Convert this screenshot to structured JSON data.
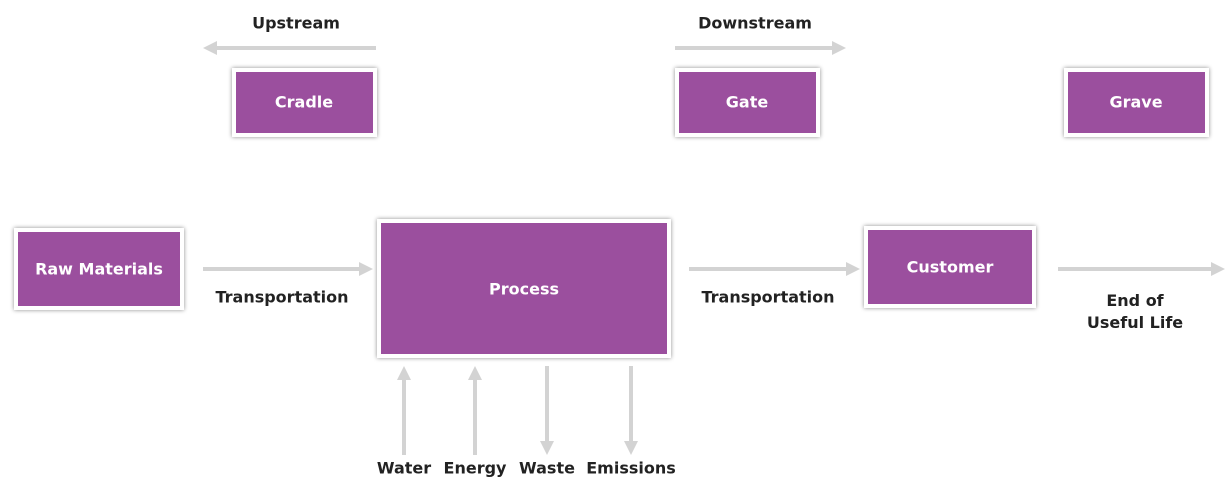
{
  "arrows": {
    "upstream": "Upstream",
    "downstream": "Downstream"
  },
  "stages": {
    "cradle": "Cradle",
    "gate": "Gate",
    "grave": "Grave"
  },
  "nodes": [
    "Raw Materials",
    "Process",
    "Customer"
  ],
  "edges": [
    "Transportation",
    "Transportation",
    "End of Useful Life"
  ],
  "flows": [
    "Water",
    "Energy",
    "Waste",
    "Emissions"
  ]
}
